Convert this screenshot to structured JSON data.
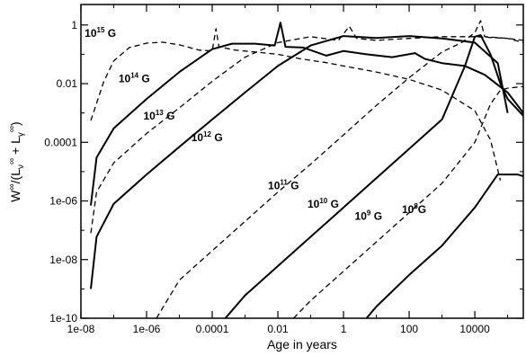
{
  "chart_data": {
    "type": "line",
    "title": "",
    "xlabel": "Age in years",
    "ylabel_parts": {
      "W": "W",
      "inf1": "∞",
      "mid": "/(L",
      "nu": "ν",
      "inf2": "∞",
      "plus": " + L",
      "gamma": "γ",
      "inf3": "∞",
      "close": ")"
    },
    "xscale": "log",
    "yscale": "log",
    "xlim": [
      1e-08,
      300000
    ],
    "ylim": [
      1e-10,
      5
    ],
    "grid": false,
    "legend": "none",
    "xticks": [
      {
        "value": 1e-08,
        "label": "1e-08"
      },
      {
        "value": 1e-06,
        "label": "1e-06"
      },
      {
        "value": 0.0001,
        "label": "0.0001"
      },
      {
        "value": 0.01,
        "label": "0.01"
      },
      {
        "value": 1,
        "label": "1"
      },
      {
        "value": 100,
        "label": "100"
      },
      {
        "value": 10000,
        "label": "10000"
      }
    ],
    "yticks": [
      {
        "value": 1e-10,
        "label": "1e-10"
      },
      {
        "value": 1e-08,
        "label": "1e-08"
      },
      {
        "value": 1e-06,
        "label": "1e-06"
      },
      {
        "value": 0.0001,
        "label": "0.0001"
      },
      {
        "value": 0.01,
        "label": "0.01"
      },
      {
        "value": 1,
        "label": "1"
      }
    ],
    "series": [
      {
        "id": "b15",
        "label_base": "10",
        "label_exp": "15",
        "label_suffix": " G",
        "label_at": [
          1.3e-08,
          0.4
        ],
        "style": "dashed",
        "points": [
          [
            2e-08,
            0.00055
          ],
          [
            5e-08,
            0.012
          ],
          [
            1e-07,
            0.06
          ],
          [
            3e-07,
            0.17
          ],
          [
            1e-06,
            0.24
          ],
          [
            3e-06,
            0.26
          ],
          [
            1e-05,
            0.21
          ],
          [
            4e-05,
            0.14
          ],
          [
            0.0001,
            0.13
          ],
          [
            0.00013,
            0.75
          ],
          [
            0.00016,
            0.18
          ],
          [
            0.0005,
            0.14
          ],
          [
            0.002,
            0.12
          ],
          [
            0.01,
            0.1
          ],
          [
            0.05,
            0.07
          ],
          [
            0.3,
            0.052
          ],
          [
            1,
            0.04
          ],
          [
            10,
            0.025
          ],
          [
            100,
            0.014
          ],
          [
            1000,
            0.006
          ],
          [
            10000,
            0.0012
          ],
          [
            30000,
            0.00012
          ],
          [
            60000,
            5e-06
          ]
        ]
      },
      {
        "id": "b14",
        "label_base": "10",
        "label_exp": "14",
        "label_suffix": " G",
        "label_at": [
          1.4e-07,
          0.011
        ],
        "style": "solid",
        "points": [
          [
            2e-08,
            7e-07
          ],
          [
            3e-08,
            3e-05
          ],
          [
            1e-07,
            0.0003
          ],
          [
            1e-06,
            0.003
          ],
          [
            1e-05,
            0.025
          ],
          [
            0.0001,
            0.15
          ],
          [
            0.0004,
            0.23
          ],
          [
            0.002,
            0.23
          ],
          [
            0.008,
            0.2
          ],
          [
            0.012,
            1.2
          ],
          [
            0.017,
            0.18
          ],
          [
            0.06,
            0.17
          ],
          [
            0.3,
            0.09
          ],
          [
            1,
            0.13
          ],
          [
            5,
            0.1
          ],
          [
            30,
            0.08
          ],
          [
            150,
            0.11
          ],
          [
            300,
            0.07
          ],
          [
            1000,
            0.05
          ],
          [
            5000,
            0.04
          ],
          [
            20000,
            0.02
          ],
          [
            100000,
            0.005
          ],
          [
            300000,
            0.001
          ]
        ]
      },
      {
        "id": "b13",
        "label_base": "10",
        "label_exp": "13",
        "label_suffix": " G",
        "label_at": [
          8e-07,
          0.0006
        ],
        "style": "dashed",
        "points": [
          [
            2e-08,
            8e-08
          ],
          [
            3e-08,
            2e-06
          ],
          [
            1e-07,
            2e-05
          ],
          [
            1e-06,
            0.0002
          ],
          [
            1e-05,
            0.0015
          ],
          [
            0.0001,
            0.012
          ],
          [
            0.001,
            0.08
          ],
          [
            0.01,
            0.25
          ],
          [
            0.1,
            0.4
          ],
          [
            0.7,
            0.3
          ],
          [
            1.5,
            0.9
          ],
          [
            2.5,
            0.35
          ],
          [
            10,
            0.3
          ],
          [
            100,
            0.35
          ],
          [
            1000,
            0.4
          ],
          [
            10000,
            0.4
          ],
          [
            100000,
            0.35
          ],
          [
            300000,
            0.25
          ]
        ]
      },
      {
        "id": "b12",
        "label_base": "10",
        "label_exp": "12",
        "label_suffix": " G",
        "label_at": [
          2.3e-05,
          0.00011
        ],
        "style": "solid",
        "points": [
          [
            2e-08,
            1e-09
          ],
          [
            3e-08,
            6e-08
          ],
          [
            1e-07,
            8e-07
          ],
          [
            1e-06,
            8e-06
          ],
          [
            1e-05,
            7e-05
          ],
          [
            0.0001,
            0.0006
          ],
          [
            0.001,
            0.005
          ],
          [
            0.01,
            0.04
          ],
          [
            0.1,
            0.2
          ],
          [
            1,
            0.42
          ],
          [
            10,
            0.36
          ],
          [
            100,
            0.42
          ],
          [
            1000,
            0.35
          ],
          [
            10000,
            0.25
          ],
          [
            50000,
            0.05
          ],
          [
            100000,
            0.001
          ]
        ]
      },
      {
        "id": "b11",
        "label_base": "10",
        "label_exp": "11",
        "label_suffix": " G",
        "label_at": [
          0.005,
          2.5e-06
        ],
        "style": "dashed",
        "points": [
          [
            2e-06,
            1e-10
          ],
          [
            1e-05,
            2e-09
          ],
          [
            0.0001,
            2e-08
          ],
          [
            0.001,
            2e-07
          ],
          [
            0.01,
            2e-06
          ],
          [
            0.1,
            1.8e-05
          ],
          [
            1,
            0.00018
          ],
          [
            10,
            0.0018
          ],
          [
            100,
            0.016
          ],
          [
            1000,
            0.12
          ],
          [
            4000,
            0.25
          ],
          [
            10000,
            0.55
          ],
          [
            15000,
            1.4
          ],
          [
            20000,
            0.4
          ],
          [
            100000,
            0.35
          ],
          [
            300000,
            0.3
          ]
        ]
      },
      {
        "id": "b10",
        "label_base": "10",
        "label_exp": "10",
        "label_suffix": " G",
        "label_at": [
          0.08,
          6e-07
        ],
        "style": "solid",
        "points": [
          [
            0.00025,
            1e-10
          ],
          [
            0.001,
            6e-10
          ],
          [
            0.01,
            6e-09
          ],
          [
            0.1,
            6e-08
          ],
          [
            1,
            6e-07
          ],
          [
            10,
            6e-06
          ],
          [
            100,
            6e-05
          ],
          [
            1000,
            0.0006
          ],
          [
            5000,
            0.04
          ],
          [
            10000,
            0.4
          ],
          [
            15000,
            0.45
          ],
          [
            30000,
            0.1
          ],
          [
            60000,
            0.01
          ],
          [
            100000,
            0.003
          ],
          [
            300000,
            0.0008
          ]
        ]
      },
      {
        "id": "b9",
        "label_base": "10",
        "label_exp": "9",
        "label_suffix": " G",
        "label_at": [
          2.2,
          2.3e-07
        ],
        "style": "dashed",
        "points": [
          [
            0.03,
            1e-10
          ],
          [
            0.1,
            4e-10
          ],
          [
            1,
            4e-09
          ],
          [
            10,
            4e-08
          ],
          [
            100,
            4e-07
          ],
          [
            1000,
            4e-06
          ],
          [
            10000,
            0.0001
          ],
          [
            30000,
            0.002
          ],
          [
            60000,
            0.006
          ],
          [
            100000,
            0.007
          ],
          [
            300000,
            0.008
          ]
        ]
      },
      {
        "id": "b8",
        "label_base": "10",
        "label_exp": "8",
        "label_suffix": "G",
        "label_at": [
          60,
          3.8e-07
        ],
        "style": "solid",
        "points": [
          [
            5,
            1e-10
          ],
          [
            10,
            2.5e-10
          ],
          [
            100,
            3e-09
          ],
          [
            1000,
            3e-08
          ],
          [
            10000,
            6e-07
          ],
          [
            50000,
            8e-06
          ],
          [
            100000,
            8e-06
          ],
          [
            200000,
            8e-06
          ],
          [
            300000,
            7e-06
          ]
        ]
      }
    ]
  }
}
